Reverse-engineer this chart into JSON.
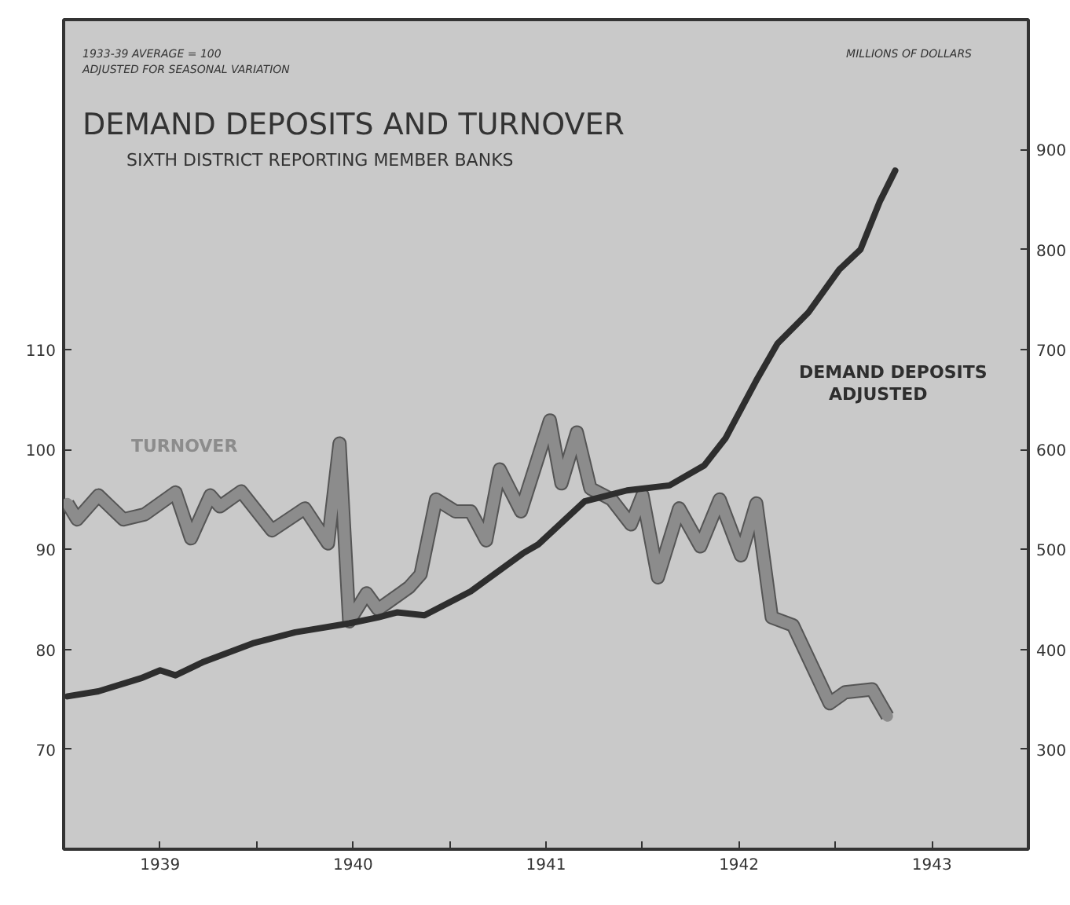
{
  "chart_data": {
    "type": "line",
    "title": "DEMAND DEPOSITS AND TURNOVER",
    "subtitle": "SIXTH DISTRICT REPORTING MEMBER BANKS",
    "ylabel": "1933-39 AVERAGE = 100\nADJUSTED FOR SEASONAL VARIATION",
    "y2label": "MILLIONS OF DOLLARS",
    "xlim": [
      1939,
      1944
    ],
    "xticks": [
      {
        "value": 1939.5,
        "label": "1939"
      },
      {
        "value": 1940,
        "label": null
      },
      {
        "value": 1940.5,
        "label": "1940"
      },
      {
        "value": 1941,
        "label": null
      },
      {
        "value": 1941.5,
        "label": "1941"
      },
      {
        "value": 1942,
        "label": null
      },
      {
        "value": 1942.5,
        "label": "1942"
      },
      {
        "value": 1943,
        "label": null
      },
      {
        "value": 1943.5,
        "label": "1943"
      }
    ],
    "ylim": [
      60,
      143
    ],
    "yticks": [
      70,
      80,
      90,
      100,
      110
    ],
    "y2lim": [
      200,
      1030
    ],
    "y2ticks": [
      300,
      400,
      500,
      600,
      700,
      800,
      900
    ],
    "grid": false,
    "legend": false,
    "series": [
      {
        "name": "TURNOVER",
        "color": "#8c8c8c",
        "x": [
          1939.02,
          1939.07,
          1939.18,
          1939.31,
          1939.42,
          1939.58,
          1939.66,
          1939.76,
          1939.81,
          1939.92,
          1940.08,
          1940.25,
          1940.37,
          1940.43,
          1940.48,
          1940.57,
          1940.63,
          1940.79,
          1940.85,
          1940.93,
          1941.03,
          1941.11,
          1941.19,
          1941.26,
          1941.37,
          1941.52,
          1941.58,
          1941.66,
          1941.73,
          1941.84,
          1941.94,
          1942.0,
          1942.08,
          1942.19,
          1942.3,
          1942.4,
          1942.51,
          1942.59,
          1942.67,
          1942.78,
          1942.97,
          1943.05,
          1943.19,
          1943.27
        ],
        "values": [
          94.6,
          93.0,
          95.4,
          93.0,
          93.5,
          95.7,
          91.1,
          95.4,
          94.3,
          95.8,
          91.9,
          94.1,
          90.6,
          100.6,
          82.8,
          85.6,
          84.0,
          86.2,
          87.5,
          95.0,
          93.8,
          93.8,
          90.9,
          98.0,
          93.8,
          102.9,
          96.6,
          101.7,
          96.1,
          95.0,
          92.5,
          95.4,
          87.2,
          94.1,
          90.3,
          95.0,
          89.4,
          94.6,
          83.2,
          82.4,
          74.6,
          75.7,
          76.0,
          73.3
        ]
      },
      {
        "name": "DEMAND DEPOSITS ADJUSTED",
        "color": "#2e2e2e",
        "axis": "y2",
        "x": [
          1939.02,
          1939.18,
          1939.4,
          1939.5,
          1939.58,
          1939.72,
          1939.98,
          1940.2,
          1940.48,
          1940.63,
          1940.73,
          1940.87,
          1941.11,
          1941.38,
          1941.46,
          1941.7,
          1941.92,
          1942.14,
          1942.32,
          1942.43,
          1942.59,
          1942.7,
          1942.86,
          1943.02,
          1943.13,
          1943.23,
          1943.31
        ],
        "values": [
          353,
          358,
          371,
          379,
          374,
          387,
          406,
          417,
          426,
          432,
          437,
          434,
          458,
          496,
          505,
          548,
          559,
          564,
          584,
          611,
          669,
          706,
          737,
          780,
          800,
          848,
          879
        ]
      }
    ]
  }
}
